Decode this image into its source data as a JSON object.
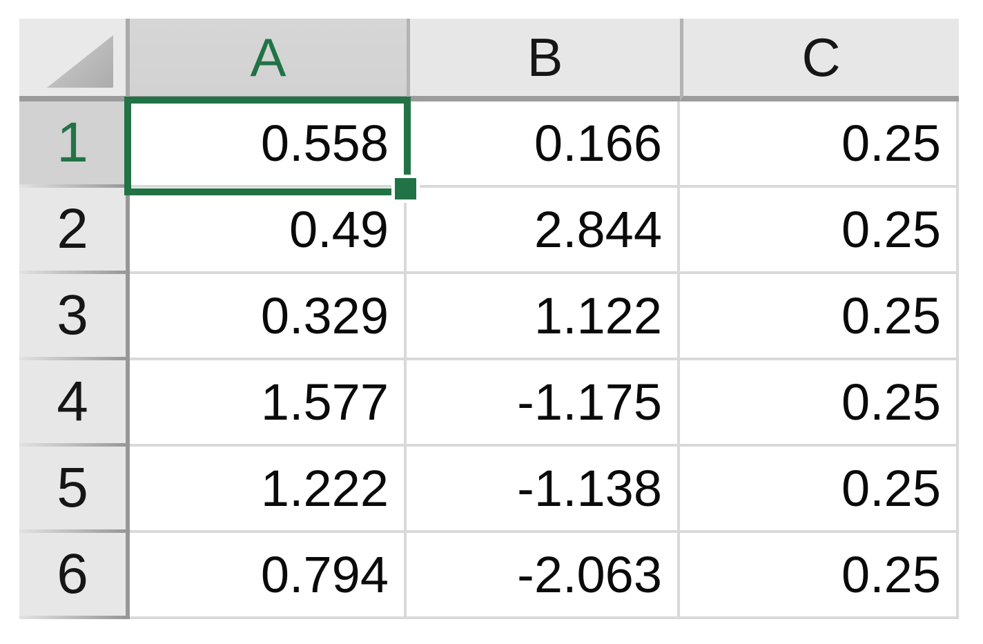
{
  "app": {
    "type": "spreadsheet-grid"
  },
  "selection": {
    "active_cell": "A1",
    "selected_column": "A",
    "selected_row": "1"
  },
  "columns": [
    {
      "letter": "A",
      "selected": true
    },
    {
      "letter": "B",
      "selected": false
    },
    {
      "letter": "C",
      "selected": false
    }
  ],
  "rows": [
    {
      "number": "1",
      "selected": true,
      "cells": [
        "0.558",
        "0.166",
        "0.25"
      ]
    },
    {
      "number": "2",
      "selected": false,
      "cells": [
        "0.49",
        "2.844",
        "0.25"
      ]
    },
    {
      "number": "3",
      "selected": false,
      "cells": [
        "0.329",
        "1.122",
        "0.25"
      ]
    },
    {
      "number": "4",
      "selected": false,
      "cells": [
        "1.577",
        "-1.175",
        "0.25"
      ]
    },
    {
      "number": "5",
      "selected": false,
      "cells": [
        "1.222",
        "-1.138",
        "0.25"
      ]
    },
    {
      "number": "6",
      "selected": false,
      "cells": [
        "0.794",
        "-2.063",
        "0.25"
      ]
    }
  ],
  "colors": {
    "accent_green": "#217346",
    "header_bg": "#e7e7e7",
    "selected_header_bg": "#d2d2d2",
    "gridline": "#d9d9d9",
    "header_border_dark": "#9a9a9a",
    "cell_text": "#0a0a0a",
    "cell_bg": "#ffffff"
  }
}
